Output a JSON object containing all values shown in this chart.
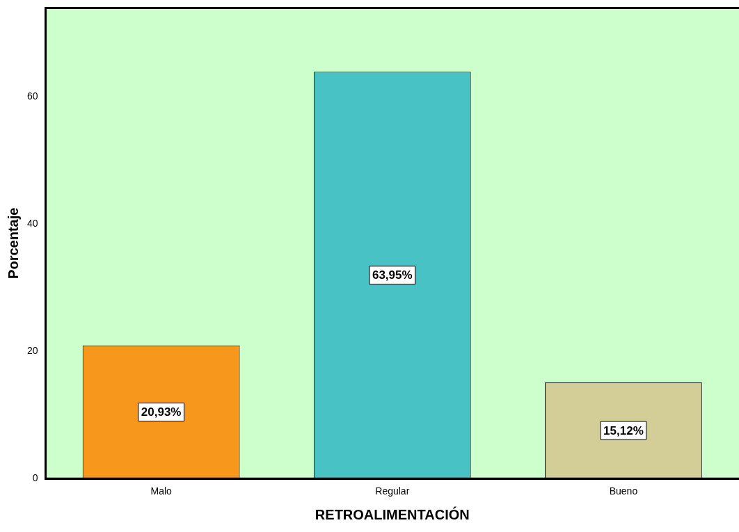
{
  "chart_data": {
    "type": "bar",
    "xlabel": "RETROALIMENTACIÓN",
    "ylabel": "Porcentaje",
    "categories": [
      "Malo",
      "Regular",
      "Bueno"
    ],
    "values": [
      20.93,
      63.95,
      15.12
    ],
    "colors": [
      "#f7981d",
      "#48c2c5",
      "#d3ce97"
    ],
    "value_labels": [
      "20,93%",
      "63,95%",
      "15,12%"
    ],
    "ylim": [
      0,
      74
    ],
    "yticks": [
      0,
      20,
      40,
      60
    ],
    "grid": false,
    "legend": false
  }
}
